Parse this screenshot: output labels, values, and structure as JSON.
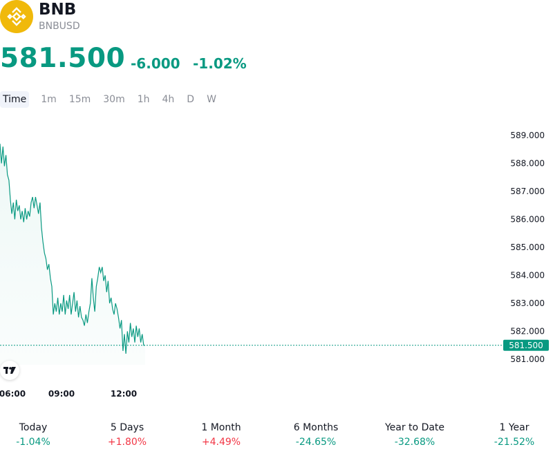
{
  "header": {
    "symbol": "BNB",
    "ticker": "BNBUSD",
    "logo_color": "#F0B90B",
    "price": "581.500",
    "change": "-6.000",
    "change_percent": "-1.02%",
    "price_color": "#089981"
  },
  "timeframes": [
    "Time",
    "1m",
    "15m",
    "30m",
    "1h",
    "4h",
    "D",
    "W"
  ],
  "active_timeframe": "Time",
  "chart_data": {
    "type": "area",
    "y_ticks": [
      "589.000",
      "588.000",
      "587.000",
      "586.000",
      "585.000",
      "584.000",
      "583.000",
      "582.000",
      "581.000"
    ],
    "x_ticks": [
      "06:00",
      "09:00",
      "12:00"
    ],
    "ylim": [
      581.0,
      589.0
    ],
    "last_price_label": "581.500",
    "last_price": 581.5,
    "line_color": "#089981",
    "series": [
      {
        "x": [
          0,
          1,
          2,
          3,
          4,
          5,
          6,
          7,
          8,
          9,
          10,
          11,
          12,
          13,
          14,
          15,
          16,
          17,
          18,
          19,
          20,
          21,
          22,
          23,
          24,
          25,
          26,
          27,
          28,
          29,
          30,
          31,
          32,
          33,
          34,
          35,
          36,
          37,
          38,
          39,
          40,
          41,
          42,
          43,
          44,
          45,
          46,
          47,
          48,
          49,
          50,
          51,
          52,
          53,
          54,
          55,
          56,
          57,
          58,
          59,
          60,
          61,
          62,
          63,
          64,
          65,
          66,
          67,
          68,
          69,
          70,
          71,
          72,
          73,
          74,
          75,
          76,
          77,
          78,
          79,
          80,
          81,
          82,
          83,
          84,
          85,
          86,
          87,
          88,
          89,
          90,
          91,
          92,
          93,
          94,
          95,
          96,
          97,
          98
        ],
        "values": [
          588.7,
          588.0,
          588.6,
          587.9,
          588.3,
          587.6,
          587.4,
          586.7,
          586.2,
          586.6,
          586.0,
          586.7,
          586.3,
          586.5,
          586.0,
          586.3,
          585.9,
          586.4,
          586.0,
          586.3,
          586.1,
          586.6,
          586.8,
          586.4,
          586.8,
          586.5,
          586.2,
          586.6,
          585.7,
          585.2,
          584.8,
          584.6,
          584.2,
          584.4,
          583.9,
          583.6,
          582.6,
          583.0,
          582.7,
          583.2,
          582.6,
          583.0,
          582.7,
          583.3,
          582.6,
          583.1,
          582.8,
          583.3,
          582.6,
          583.0,
          583.4,
          582.7,
          583.1,
          582.5,
          582.9,
          582.5,
          582.4,
          582.2,
          582.6,
          582.3,
          582.7,
          583.0,
          583.9,
          583.2,
          582.7,
          583.6,
          583.9,
          584.3,
          584.1,
          584.3,
          583.8,
          584.0,
          583.4,
          583.8,
          583.0,
          583.2,
          582.8,
          582.6,
          583.0,
          582.8,
          582.5,
          582.1,
          582.4,
          581.3,
          581.9,
          581.2,
          582.0,
          581.6,
          582.3,
          581.8,
          582.1,
          581.6,
          582.2,
          581.8,
          582.1,
          581.6,
          581.9,
          581.5,
          581.5
        ]
      }
    ]
  },
  "performance": [
    {
      "label": "Today",
      "value": "-1.04%",
      "color": "#089981"
    },
    {
      "label": "5 Days",
      "value": "+1.80%",
      "color": "#F23645"
    },
    {
      "label": "1 Month",
      "value": "+4.49%",
      "color": "#F23645"
    },
    {
      "label": "6 Months",
      "value": "-24.65%",
      "color": "#089981"
    },
    {
      "label": "Year to Date",
      "value": "-32.68%",
      "color": "#089981"
    },
    {
      "label": "1 Year",
      "value": "-21.52%",
      "color": "#089981"
    }
  ]
}
